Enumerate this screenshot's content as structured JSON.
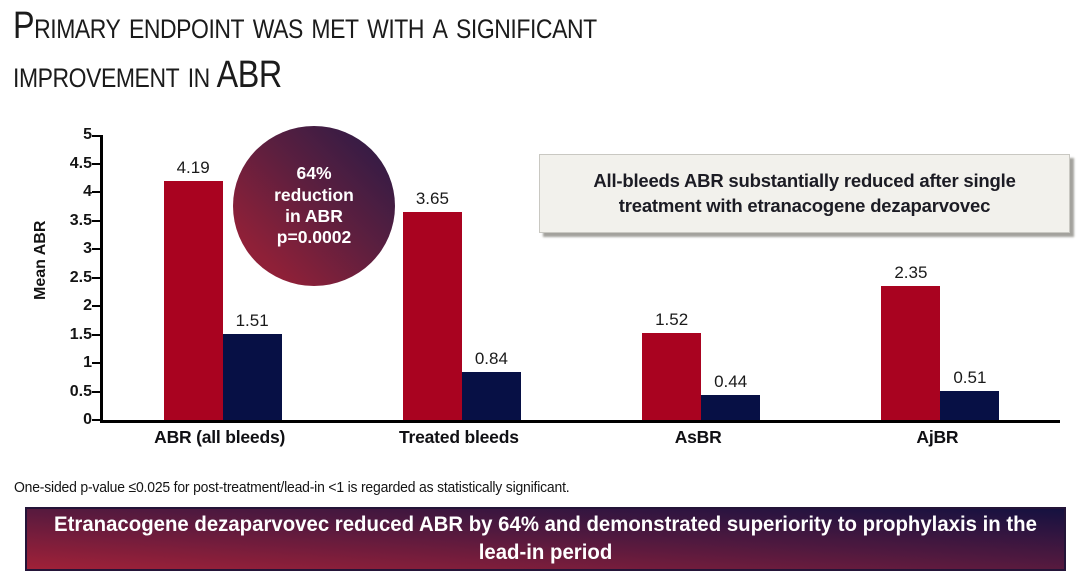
{
  "title": {
    "line1": "Primary endpoint was met with a significant",
    "line2": "improvement in ABR"
  },
  "chart_data": {
    "type": "bar",
    "categories": [
      "ABR (all bleeds)",
      "Treated bleeds",
      "AsBR",
      "AjBR"
    ],
    "series": [
      {
        "name": "red",
        "color": "#a90320",
        "values": [
          4.19,
          3.65,
          1.52,
          2.35
        ]
      },
      {
        "name": "navy",
        "color": "#071045",
        "values": [
          1.51,
          0.84,
          0.44,
          0.51
        ]
      }
    ],
    "xlabel": "",
    "ylabel": "Mean ABR",
    "ylim": [
      0,
      5
    ],
    "ytick_step": 0.5,
    "grid": false,
    "legend": "none",
    "value_label_decimals": 2
  },
  "badge": {
    "lines": [
      "64%",
      "reduction",
      "in ABR",
      "p=0.0002"
    ],
    "gradient": [
      "#8f2038",
      "#2c1b46"
    ]
  },
  "callout": {
    "text": "All-bleeds ABR substantially reduced after single treatment with etranacogene dezaparvovec",
    "background": "#f2f1ec"
  },
  "footnote": "One-sided p-value ≤0.025 for post-treatment/lead-in <1 is regarded as statistically significant.",
  "banner": {
    "text": "Etranacogene dezaparvovec reduced ABR by 64% and demonstrated superiority to prophylaxis in the lead-in period",
    "gradient": [
      "#a02138",
      "#151140"
    ]
  },
  "colors": {
    "bar_red": "#a90320",
    "bar_navy": "#071045",
    "title_text": "#1b1b1b",
    "axis": "#000000"
  }
}
